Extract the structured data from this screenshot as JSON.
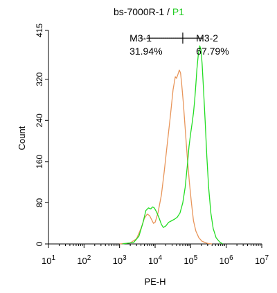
{
  "chart_data": {
    "type": "line",
    "title_parts": [
      {
        "text": "bs-7000R-1 / ",
        "color": "#000000"
      },
      {
        "text": "P1",
        "color": "#22cc22"
      }
    ],
    "xlabel": "PE-H",
    "ylabel": "Count",
    "x_scale": "log",
    "xlim": [
      10,
      10000000
    ],
    "ylim": [
      0,
      415
    ],
    "x_ticks": [
      {
        "value": 10,
        "base": "10",
        "exp": "1"
      },
      {
        "value": 100,
        "base": "10",
        "exp": "2"
      },
      {
        "value": 1000,
        "base": "10",
        "exp": "3"
      },
      {
        "value": 10000,
        "base": "10",
        "exp": "4"
      },
      {
        "value": 100000,
        "base": "10",
        "exp": "5"
      },
      {
        "value": 1000000,
        "base": "10",
        "exp": "6"
      },
      {
        "value": 10000000,
        "base": "10",
        "exp": "7"
      }
    ],
    "y_ticks": [
      "0",
      "80",
      "160",
      "240",
      "320",
      "415"
    ],
    "y_tick_values": [
      0,
      80,
      160,
      240,
      320,
      415
    ],
    "series": [
      {
        "color": "#e8955a",
        "points": [
          [
            1000,
            0
          ],
          [
            2000,
            2
          ],
          [
            3000,
            10
          ],
          [
            4000,
            30
          ],
          [
            5000,
            50
          ],
          [
            6000,
            58
          ],
          [
            7000,
            55
          ],
          [
            8000,
            47
          ],
          [
            9000,
            40
          ],
          [
            10000,
            42
          ],
          [
            12000,
            60
          ],
          [
            15000,
            95
          ],
          [
            18000,
            140
          ],
          [
            22000,
            195
          ],
          [
            27000,
            250
          ],
          [
            32000,
            300
          ],
          [
            37000,
            325
          ],
          [
            40000,
            322
          ],
          [
            44000,
            330
          ],
          [
            48000,
            338
          ],
          [
            52000,
            332
          ],
          [
            56000,
            310
          ],
          [
            62000,
            275
          ],
          [
            70000,
            225
          ],
          [
            80000,
            170
          ],
          [
            92000,
            120
          ],
          [
            105000,
            80
          ],
          [
            120000,
            45
          ],
          [
            140000,
            25
          ],
          [
            170000,
            12
          ],
          [
            210000,
            5
          ],
          [
            300000,
            1
          ],
          [
            400000,
            0
          ]
        ]
      },
      {
        "color": "#22dd22",
        "points": [
          [
            1200,
            0
          ],
          [
            2500,
            3
          ],
          [
            3500,
            15
          ],
          [
            4500,
            40
          ],
          [
            5500,
            65
          ],
          [
            6500,
            70
          ],
          [
            7500,
            68
          ],
          [
            8500,
            72
          ],
          [
            9500,
            70
          ],
          [
            11000,
            62
          ],
          [
            13000,
            50
          ],
          [
            15000,
            38
          ],
          [
            17000,
            32
          ],
          [
            20000,
            35
          ],
          [
            24000,
            42
          ],
          [
            29000,
            45
          ],
          [
            35000,
            48
          ],
          [
            42000,
            52
          ],
          [
            50000,
            60
          ],
          [
            60000,
            80
          ],
          [
            70000,
            110
          ],
          [
            80000,
            150
          ],
          [
            90000,
            190
          ],
          [
            100000,
            215
          ],
          [
            110000,
            235
          ],
          [
            120000,
            255
          ],
          [
            130000,
            280
          ],
          [
            140000,
            310
          ],
          [
            150000,
            340
          ],
          [
            165000,
            370
          ],
          [
            180000,
            385
          ],
          [
            195000,
            378
          ],
          [
            210000,
            350
          ],
          [
            230000,
            300
          ],
          [
            255000,
            240
          ],
          [
            285000,
            170
          ],
          [
            320000,
            110
          ],
          [
            370000,
            60
          ],
          [
            430000,
            30
          ],
          [
            520000,
            12
          ],
          [
            650000,
            4
          ],
          [
            800000,
            0
          ]
        ]
      }
    ],
    "gates": [
      {
        "label": "M3-1",
        "percent": "31.94%",
        "from": 2500,
        "to": 60000,
        "y": 400
      },
      {
        "label": "M3-2",
        "percent": "67.79%",
        "from": 60000,
        "to": 170000,
        "y": 400
      }
    ]
  }
}
